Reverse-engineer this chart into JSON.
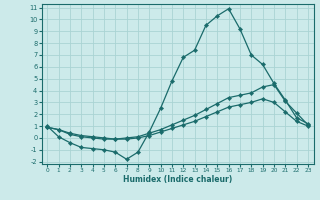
{
  "xlabel": "Humidex (Indice chaleur)",
  "ylabel": "",
  "xlim": [
    -0.5,
    23.5
  ],
  "ylim": [
    -2.2,
    11.3
  ],
  "background_color": "#cceaea",
  "grid_color": "#aad4d4",
  "line_color": "#1a6b6b",
  "line1": [
    1.0,
    0.1,
    -0.4,
    -0.8,
    -0.9,
    -1.0,
    -1.2,
    -1.8,
    -1.2,
    0.5,
    2.5,
    4.8,
    6.8,
    7.4,
    9.5,
    10.3,
    10.9,
    9.2,
    7.0,
    6.2,
    4.6,
    3.2,
    1.7,
    1.2
  ],
  "line2": [
    0.9,
    0.7,
    0.4,
    0.2,
    0.1,
    0.0,
    -0.1,
    0.0,
    0.1,
    0.4,
    0.7,
    1.1,
    1.5,
    1.9,
    2.4,
    2.9,
    3.4,
    3.6,
    3.8,
    4.3,
    4.5,
    3.1,
    2.1,
    1.1
  ],
  "line3": [
    0.9,
    0.7,
    0.3,
    0.1,
    0.0,
    -0.1,
    -0.1,
    -0.1,
    0.0,
    0.2,
    0.5,
    0.8,
    1.1,
    1.4,
    1.8,
    2.2,
    2.6,
    2.8,
    3.0,
    3.3,
    3.0,
    2.2,
    1.4,
    1.0
  ],
  "xticks": [
    0,
    1,
    2,
    3,
    4,
    5,
    6,
    7,
    8,
    9,
    10,
    11,
    12,
    13,
    14,
    15,
    16,
    17,
    18,
    19,
    20,
    21,
    22,
    23
  ],
  "yticks": [
    -2,
    -1,
    0,
    1,
    2,
    3,
    4,
    5,
    6,
    7,
    8,
    9,
    10,
    11
  ],
  "marker_size": 2.2,
  "linewidth": 0.9
}
